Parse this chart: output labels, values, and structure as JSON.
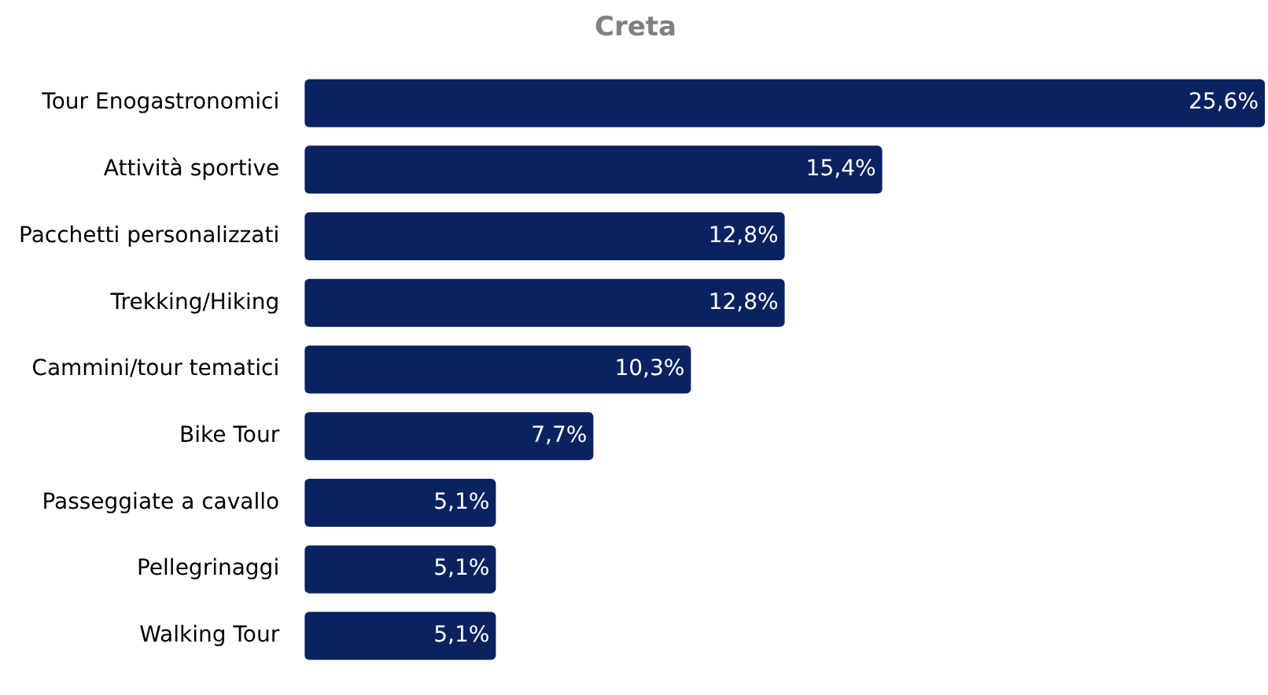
{
  "chart_data": {
    "type": "bar",
    "orientation": "horizontal",
    "title": "Creta",
    "categories": [
      "Tour Enogastronomici",
      "Attività sportive",
      "Pacchetti personalizzati",
      "Trekking/Hiking",
      "Cammini/tour tematici",
      "Bike Tour",
      "Passeggiate a cavallo",
      "Pellegrinaggi",
      "Walking Tour"
    ],
    "values": [
      25.6,
      15.4,
      12.8,
      12.8,
      10.3,
      7.7,
      5.1,
      5.1,
      5.1
    ],
    "value_labels": [
      "25,6%",
      "15,4%",
      "12,8%",
      "12,8%",
      "10,3%",
      "7,7%",
      "5,1%",
      "5,1%",
      "5,1%"
    ],
    "color": "#0b2260",
    "legend": false
  }
}
